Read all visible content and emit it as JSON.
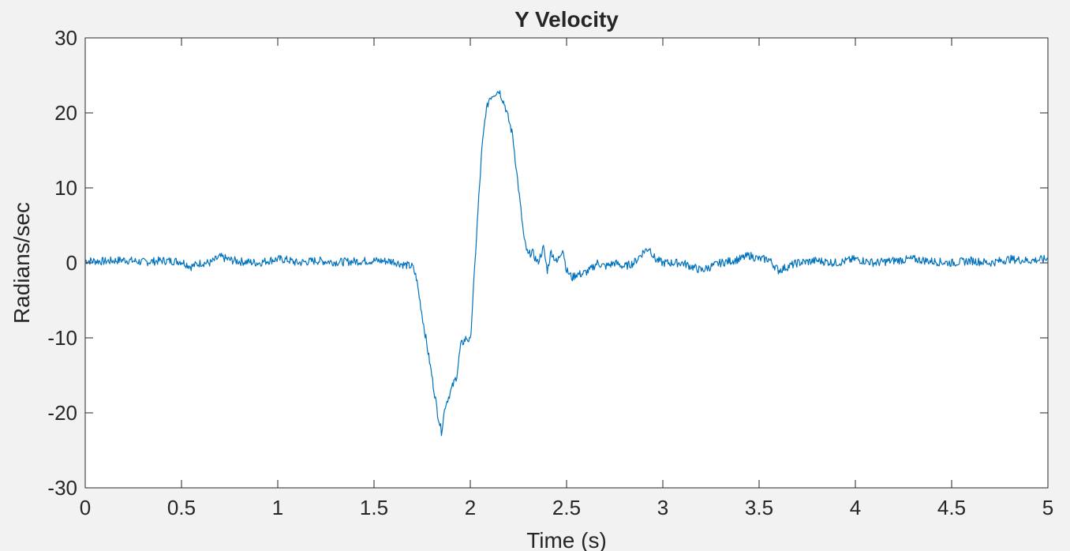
{
  "colors": {
    "background": "#f2f2f2",
    "plot_area": "#ffffff",
    "axis": "#262626",
    "series": "#0072bd"
  },
  "chart_data": {
    "type": "line",
    "title": "Y Velocity",
    "xlabel": "Time (s)",
    "ylabel": "Radians/sec",
    "xlim": [
      0,
      5
    ],
    "ylim": [
      -30,
      30
    ],
    "grid": false,
    "legend": "none",
    "xticks": [
      0,
      0.5,
      1,
      1.5,
      2,
      2.5,
      3,
      3.5,
      4,
      4.5,
      5
    ],
    "xtick_labels": [
      "0",
      "0.5",
      "1",
      "1.5",
      "2",
      "2.5",
      "3",
      "3.5",
      "4",
      "4.5",
      "5"
    ],
    "yticks": [
      -30,
      -20,
      -10,
      0,
      10,
      20,
      30
    ],
    "ytick_labels": [
      "-30",
      "-20",
      "-10",
      "0",
      "10",
      "20",
      "30"
    ],
    "series": [
      {
        "color": "#0072bd",
        "x": [
          0,
          0.1,
          0.2,
          0.3,
          0.4,
          0.5,
          0.55,
          0.6,
          0.65,
          0.7,
          0.75,
          0.8,
          0.9,
          0.95,
          1.0,
          1.05,
          1.1,
          1.2,
          1.3,
          1.4,
          1.5,
          1.6,
          1.65,
          1.7,
          1.72,
          1.75,
          1.8,
          1.83,
          1.85,
          1.87,
          1.9,
          1.93,
          1.95,
          1.98,
          2.0,
          2.02,
          2.04,
          2.06,
          2.08,
          2.1,
          2.12,
          2.15,
          2.18,
          2.2,
          2.22,
          2.25,
          2.28,
          2.3,
          2.32,
          2.35,
          2.38,
          2.4,
          2.42,
          2.45,
          2.48,
          2.5,
          2.53,
          2.55,
          2.58,
          2.62,
          2.66,
          2.7,
          2.75,
          2.8,
          2.85,
          2.9,
          2.93,
          2.96,
          3.0,
          3.1,
          3.2,
          3.3,
          3.4,
          3.45,
          3.5,
          3.55,
          3.6,
          3.7,
          3.8,
          3.9,
          4.0,
          4.1,
          4.2,
          4.3,
          4.4,
          4.5,
          4.6,
          4.7,
          4.8,
          4.9,
          5.0
        ],
        "y": [
          0.3,
          0.2,
          0.4,
          0.1,
          0.3,
          0.2,
          -0.5,
          0,
          0,
          0.8,
          0.4,
          0.2,
          0,
          0.3,
          0.5,
          0.4,
          0,
          0.3,
          0.1,
          0.2,
          0.3,
          0.2,
          -0.2,
          -0.5,
          -2,
          -7,
          -15,
          -20,
          -22.5,
          -19,
          -17,
          -15,
          -11,
          -10,
          -10.5,
          -2,
          7,
          15,
          20,
          22,
          22.5,
          23,
          21,
          19,
          17,
          10,
          3,
          1,
          1.5,
          0,
          2,
          -1,
          1.5,
          0,
          2,
          -1,
          -2,
          -1.5,
          -1.5,
          -1,
          0,
          -0.5,
          0,
          -0.5,
          0,
          1.5,
          2,
          0.5,
          0,
          0,
          -1,
          0,
          0.5,
          1,
          0.5,
          0.5,
          -1,
          0,
          0.3,
          0,
          0.5,
          0,
          0.3,
          0.5,
          0.2,
          0,
          0.3,
          0,
          0.5,
          0.3,
          0.5
        ]
      }
    ]
  }
}
